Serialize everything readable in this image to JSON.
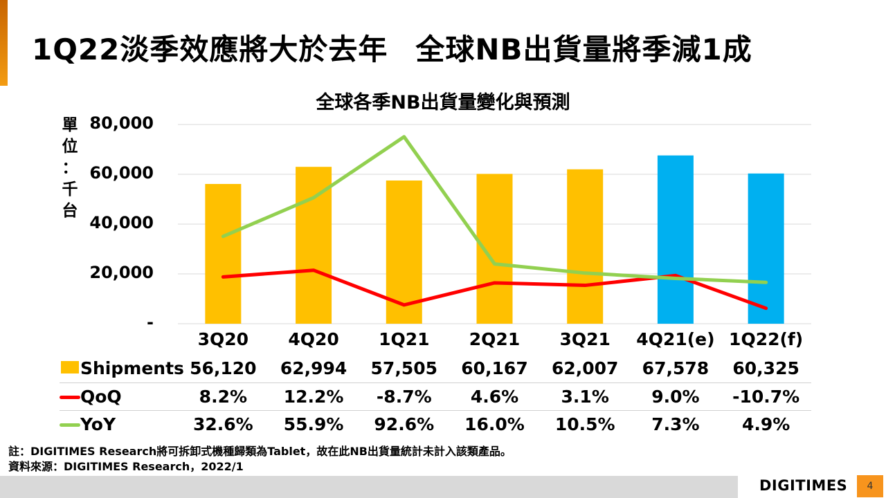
{
  "slide": {
    "title_part1": "1Q22淡季效應將大於去年",
    "title_part2": "全球NB出貨量將季減1成",
    "unit_label": [
      "單",
      "位",
      "：",
      "千",
      "台"
    ],
    "footnote": "註：DIGITIMES Research將可拆卸式機種歸類為Tablet，故在此NB出貨量統計未計入該類產品。",
    "source": "資料來源：DIGITIMES Research，2022/1",
    "logo": "DIGITIMES",
    "page_number": "4",
    "accent_color": "#f39c12"
  },
  "table": {
    "row_labels": {
      "shipments": "Shipments",
      "qoq": "QoQ",
      "yoy": "YoY"
    },
    "shipments": [
      "56,120",
      "62,994",
      "57,505",
      "60,167",
      "62,007",
      "67,578",
      "60,325"
    ],
    "qoq": [
      "8.2%",
      "12.2%",
      "-8.7%",
      "4.6%",
      "3.1%",
      "9.0%",
      "-10.7%"
    ],
    "yoy": [
      "32.6%",
      "55.9%",
      "92.6%",
      "16.0%",
      "10.5%",
      "7.3%",
      "4.9%"
    ]
  },
  "chart_data": {
    "type": "bar",
    "title": "全球各季NB出貨量變化與預測",
    "ylabel": "單位：千台",
    "xlabel": "",
    "categories": [
      "3Q20",
      "4Q20",
      "1Q21",
      "2Q21",
      "3Q21",
      "4Q21(e)",
      "1Q22(f)"
    ],
    "ylim": [
      0,
      80000
    ],
    "yticks": [
      0,
      20000,
      40000,
      60000,
      80000
    ],
    "ytick_labels": [
      "-",
      "20,000",
      "40,000",
      "60,000",
      "80,000"
    ],
    "secondary_ylim_percent": [
      -20,
      100
    ],
    "grid": true,
    "legend": "data-table-bottom",
    "series": [
      {
        "name": "Shipments",
        "type": "bar",
        "axis": "primary",
        "values": [
          56120,
          62994,
          57505,
          60167,
          62007,
          67578,
          60325
        ],
        "colors": [
          "#ffc000",
          "#ffc000",
          "#ffc000",
          "#ffc000",
          "#ffc000",
          "#00b0f0",
          "#00b0f0"
        ]
      },
      {
        "name": "QoQ",
        "type": "line",
        "axis": "secondary",
        "unit": "%",
        "values": [
          8.2,
          12.2,
          -8.7,
          4.6,
          3.1,
          9.0,
          -10.7
        ],
        "color": "#ff0000"
      },
      {
        "name": "YoY",
        "type": "line",
        "axis": "secondary",
        "unit": "%",
        "values": [
          32.6,
          55.9,
          92.6,
          16.0,
          10.5,
          7.3,
          4.9
        ],
        "color": "#92d050"
      }
    ]
  }
}
